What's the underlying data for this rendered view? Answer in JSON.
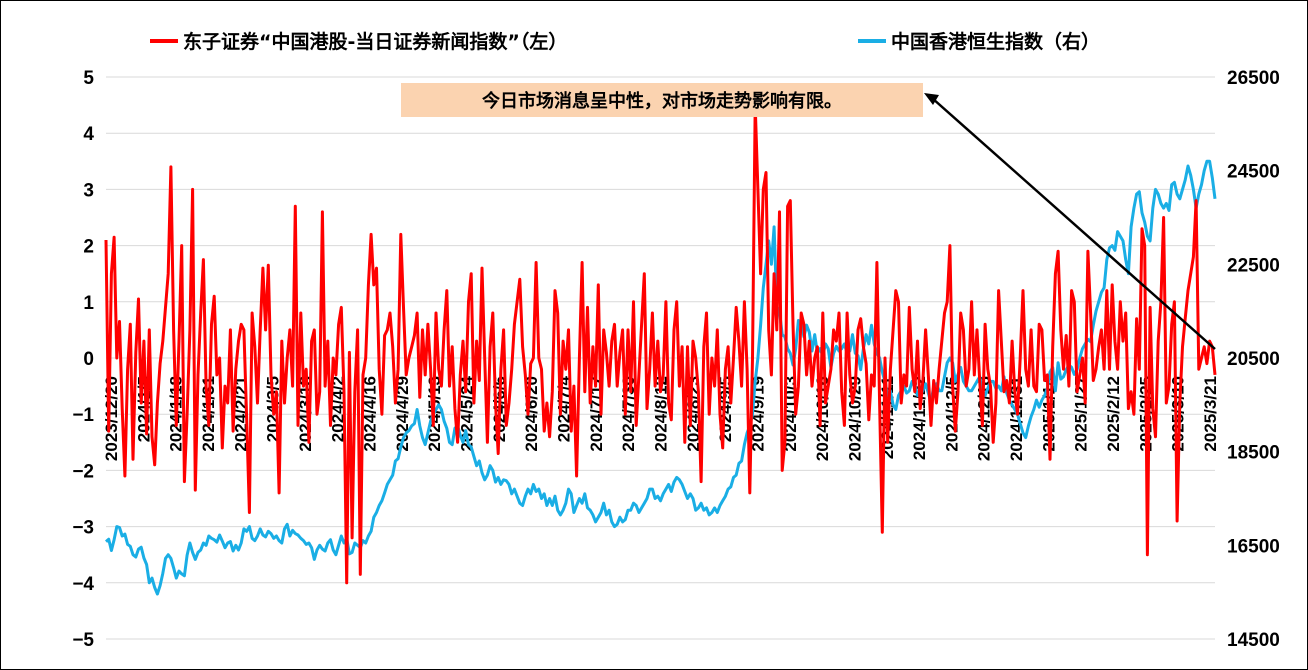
{
  "chart_data": {
    "type": "line",
    "title": "",
    "legend_position": "top",
    "grid": true,
    "y_left": {
      "min": -5,
      "max": 5,
      "ticks": [
        "5",
        "4",
        "3",
        "2",
        "1",
        "0",
        "−1",
        "−2",
        "−3",
        "−4",
        "−5"
      ]
    },
    "y_right": {
      "min": 14500,
      "max": 26500,
      "ticks": [
        "26500",
        "24500",
        "22500",
        "20500",
        "18500",
        "16500",
        "14500"
      ]
    },
    "x_tick_labels": [
      "2023/12/20",
      "2024/1/5",
      "2024/1/18",
      "2024/1/31",
      "2024/2/21",
      "2024/3/5",
      "2024/3/18",
      "2024/4/2",
      "2024/4/16",
      "2024/4/29",
      "2024/5/13",
      "2024/5/24",
      "2024/6/6",
      "2024/6/20",
      "2024/7/4",
      "2024/7/17",
      "2024/7/30",
      "2024/8/12",
      "2024/8/23",
      "2024/9/5",
      "2024/9/19",
      "2024/10/3",
      "2024/10/16",
      "2024/10/29",
      "2024/11/11",
      "2024/11/22",
      "2024/12/5",
      "2024/12/18",
      "2024/12/31",
      "2025/1/14",
      "2025/1/27",
      "2025/2/12",
      "2025/2/25",
      "2025/3/10",
      "2025/3/21"
    ],
    "series": [
      {
        "name": "东子证券“中国港股-当日证券新闻指数”（左）",
        "axis": "left",
        "color": "#ff0000",
        "values": [
          2.1,
          -1.3,
          1.5,
          2.15,
          0.0,
          0.65,
          -0.9,
          -2.1,
          -0.2,
          0.6,
          -1.8,
          0.1,
          1.05,
          -0.8,
          0.3,
          -1.35,
          0.5,
          -1.4,
          -1.9,
          -0.8,
          -0.1,
          0.3,
          0.9,
          1.5,
          3.4,
          0.5,
          -1.2,
          0.3,
          2.0,
          -2.2,
          -1.0,
          0.5,
          3.0,
          -2.35,
          -0.3,
          0.8,
          1.75,
          -0.5,
          -1.2,
          0.6,
          1.1,
          -0.3,
          0.0,
          -1.6,
          -0.5,
          -0.8,
          0.5,
          -1.3,
          -0.2,
          0.3,
          0.6,
          0.5,
          -1.1,
          -2.75,
          0.8,
          0.2,
          -0.8,
          0.5,
          1.6,
          0.5,
          1.65,
          -0.3,
          -1.0,
          -0.6,
          -2.4,
          0.3,
          -0.8,
          0.0,
          0.5,
          -0.5,
          2.7,
          -1.2,
          0.8,
          -0.5,
          -0.2,
          -1.5,
          0.3,
          0.5,
          -1.0,
          -0.6,
          2.6,
          -0.5,
          0.3,
          -1.2,
          0.0,
          -0.3,
          0.6,
          0.9,
          -0.6,
          -4.0,
          0.1,
          -3.2,
          -0.6,
          0.5,
          -3.85,
          -0.3,
          0.0,
          1.3,
          2.2,
          1.3,
          1.6,
          -0.2,
          -1.0,
          0.4,
          0.5,
          0.8,
          0.2,
          -0.8,
          -0.2,
          2.2,
          0.9,
          -0.3,
          0.0,
          0.2,
          0.4,
          0.8,
          -0.7,
          0.5,
          -0.3,
          0.6,
          -0.2,
          -1.2,
          0.8,
          -0.2,
          -0.5,
          0.5,
          1.2,
          -0.5,
          0.2,
          -0.9,
          -1.5,
          -0.3,
          0.3,
          -0.6,
          1.0,
          1.5,
          -0.8,
          0.3,
          -0.4,
          1.6,
          0.0,
          -1.5,
          0.2,
          0.8,
          -0.8,
          -1.7,
          -0.2,
          0.5,
          -1.2,
          -0.8,
          -0.2,
          0.6,
          1.0,
          1.4,
          0.2,
          -0.3,
          -1.0,
          -0.1,
          0.0,
          1.7,
          0.0,
          -0.2,
          -1.3,
          -0.8,
          -1.4,
          -0.6,
          1.2,
          0.8,
          -1.0,
          0.3,
          -0.2,
          0.5,
          -1.3,
          -0.5,
          -2.1,
          0.0,
          1.7,
          -0.6,
          0.9,
          -0.8,
          0.2,
          -0.5,
          1.3,
          -1.0,
          0.5,
          0.1,
          -0.5,
          0.3,
          0.6,
          -0.5,
          0.1,
          0.5,
          -1.0,
          0.5,
          -0.6,
          1.0,
          -1.2,
          -0.3,
          0.6,
          1.5,
          -0.9,
          -0.2,
          0.8,
          -0.5,
          0.3,
          -0.6,
          -0.3,
          1.0,
          -0.8,
          -1.1,
          0.5,
          1.0,
          -0.5,
          0.2,
          -1.5,
          0.2,
          -1.2,
          0.3,
          0.0,
          -0.6,
          -2.2,
          0.2,
          0.8,
          -1.0,
          0.0,
          -0.5,
          0.5,
          -1.0,
          -1.6,
          -0.2,
          0.2,
          -0.8,
          0.0,
          0.9,
          0.3,
          -0.5,
          1.0,
          -0.2,
          -2.4,
          0.0,
          4.5,
          3.0,
          1.5,
          3.0,
          3.3,
          0.5,
          -0.3,
          1.5,
          0.5,
          2.6,
          -2.0,
          -1.5,
          2.7,
          2.8,
          0.6,
          -1.0,
          -0.5,
          0.8,
          0.6,
          -0.3,
          0.3,
          -0.5,
          0.0,
          0.2,
          -1.2,
          0.8,
          -0.8,
          -0.5,
          -0.2,
          0.5,
          0.3,
          0.8,
          -0.6,
          -1.2,
          0.8,
          -0.3,
          -0.8,
          -0.5,
          0.5,
          0.7,
          0.2,
          -0.1,
          -1.1,
          -0.3,
          -0.5,
          1.7,
          -0.8,
          -3.1,
          0.0,
          -1.5,
          -0.2,
          0.5,
          1.2,
          1.0,
          -0.8,
          -0.3,
          -0.5,
          0.9,
          -0.2,
          -0.6,
          0.3,
          -0.9,
          -0.4,
          0.5,
          -0.3,
          -1.2,
          -0.4,
          -0.8,
          -0.2,
          0.3,
          0.8,
          1.0,
          2.0,
          -0.5,
          -1.3,
          -0.6,
          0.8,
          0.5,
          -0.5,
          -0.2,
          1.0,
          -0.3,
          0.5,
          -0.4,
          -1.2,
          0.6,
          -0.2,
          -0.5,
          -1.5,
          -0.8,
          1.2,
          0.3,
          -0.6,
          -0.4,
          -0.8,
          0.3,
          -0.6,
          -1.0,
          0.0,
          1.2,
          -0.2,
          -0.5,
          0.5,
          -0.5,
          -0.6,
          0.6,
          0.5,
          -0.4,
          -0.3,
          -1.8,
          0.2,
          1.5,
          1.9,
          0.5,
          -0.2,
          0.4,
          -0.5,
          1.2,
          1.0,
          -0.6,
          -0.3,
          0.0,
          -0.8,
          1.9,
          0.8,
          -0.4,
          -0.2,
          0.2,
          0.5,
          -0.2,
          1.2,
          -0.2,
          1.3,
          0.3,
          -0.2,
          1.0,
          0.3,
          0.8,
          -0.9,
          -0.6,
          -1.0,
          0.7,
          -0.2,
          2.3,
          2.0,
          -3.5,
          0.9,
          -0.9,
          -1.4,
          0.3,
          1.0,
          2.5,
          -0.8,
          -0.5,
          0.6,
          1.0,
          -2.9,
          -0.8,
          0.2,
          0.7,
          1.2,
          1.5,
          1.8,
          2.8,
          -0.2,
          0.0,
          0.2,
          -0.1,
          0.3,
          0.2,
          -0.3
        ]
      },
      {
        "name": "中国香港恒生指数（右）",
        "axis": "right",
        "color": "#1aaee5",
        "values": [
          16580,
          16630,
          16390,
          16620,
          16900,
          16880,
          16700,
          16740,
          16520,
          16480,
          16300,
          16250,
          16420,
          16460,
          16230,
          16090,
          15700,
          15800,
          15600,
          15460,
          15640,
          15900,
          16220,
          16300,
          16220,
          16020,
          15800,
          15950,
          15890,
          15850,
          16290,
          16550,
          16350,
          16200,
          16350,
          16400,
          16550,
          16500,
          16700,
          16650,
          16620,
          16570,
          16720,
          16590,
          16450,
          16550,
          16580,
          16380,
          16500,
          16400,
          16550,
          16850,
          16800,
          16900,
          16650,
          16600,
          16700,
          16850,
          16720,
          16680,
          16800,
          16750,
          16650,
          16700,
          16600,
          16550,
          16850,
          16950,
          16700,
          16820,
          16750,
          16720,
          16650,
          16600,
          16520,
          16550,
          16450,
          16200,
          16400,
          16500,
          16420,
          16380,
          16550,
          16620,
          16400,
          16300,
          16500,
          16700,
          16550,
          16650,
          16320,
          16350,
          16550,
          16500,
          16450,
          16600,
          16550,
          16700,
          16800,
          17100,
          17200,
          17350,
          17450,
          17620,
          17800,
          17900,
          18000,
          18300,
          18350,
          18600,
          18800,
          18900,
          18950,
          19050,
          19100,
          19400,
          19050,
          18800,
          18650,
          18900,
          19150,
          19300,
          19400,
          19500,
          19400,
          19150,
          19000,
          18700,
          18650,
          19000,
          19050,
          18850,
          18700,
          18950,
          18650,
          18600,
          18400,
          18200,
          18300,
          18050,
          17900,
          18000,
          18200,
          18100,
          17850,
          17950,
          17800,
          17900,
          17880,
          17800,
          17600,
          17700,
          17550,
          17400,
          17350,
          17550,
          17700,
          17600,
          17800,
          17650,
          17700,
          17500,
          17600,
          17350,
          17500,
          17350,
          17550,
          17250,
          17150,
          17250,
          17400,
          17700,
          17600,
          17200,
          17350,
          17500,
          17400,
          17600,
          17300,
          17250,
          17150,
          17000,
          17100,
          17200,
          17400,
          17150,
          17250,
          17000,
          16900,
          16950,
          17100,
          17000,
          17050,
          17250,
          17250,
          17400,
          17350,
          17200,
          17300,
          17400,
          17500,
          17700,
          17700,
          17500,
          17550,
          17450,
          17600,
          17700,
          17800,
          17650,
          17850,
          17950,
          17900,
          17800,
          17650,
          17500,
          17600,
          17500,
          17250,
          17300,
          17400,
          17250,
          17300,
          17150,
          17200,
          17300,
          17200,
          17350,
          17450,
          17550,
          17700,
          17750,
          17950,
          18000,
          18250,
          18300,
          18650,
          18900,
          19050,
          19300,
          20000,
          20500,
          21200,
          22000,
          22500,
          23000,
          22500,
          23300,
          21600,
          21500,
          21000,
          20950,
          20700,
          20600,
          20350,
          20700,
          21300,
          21250,
          20950,
          21200,
          21050,
          20650,
          21000,
          20600,
          20700,
          20550,
          20800,
          20700,
          20300,
          20600,
          20750,
          20650,
          20700,
          20800,
          20600,
          20650,
          21000,
          20600,
          20550,
          20250,
          20700,
          21000,
          20800,
          21200,
          20800,
          20600,
          20500,
          20200,
          20000,
          19700,
          19800,
          19500,
          19400,
          19700,
          19800,
          19900,
          19750,
          19800,
          20000,
          19950,
          19700,
          19700,
          19800,
          19950,
          19750,
          19550,
          19900,
          19950,
          19800,
          19800,
          20100,
          20400,
          20500,
          20400,
          20000,
          20150,
          20300,
          20000,
          19900,
          19800,
          19800,
          19900,
          20000,
          20100,
          19800,
          19700,
          19850,
          20000,
          20000,
          19850,
          19900,
          19800,
          20100,
          19750,
          19600,
          19500,
          19400,
          19300,
          19100,
          18900,
          18800,
          19050,
          19250,
          19400,
          19600,
          19450,
          19600,
          19700,
          19850,
          20200,
          20300,
          19800,
          20400,
          20050,
          20100,
          20250,
          20350,
          20300,
          20150,
          20250,
          20500,
          20700,
          20800,
          20900,
          20850,
          21200,
          21500,
          21700,
          21900,
          22000,
          22600,
          22850,
          22900,
          22800,
          23200,
          23100,
          23000,
          22600,
          22300,
          23300,
          23700,
          24000,
          24050,
          23600,
          23400,
          23100,
          23000,
          23700,
          24100,
          24000,
          23800,
          23700,
          23800,
          23650,
          24200,
          24250,
          24000,
          23900,
          24100,
          24300,
          24600,
          24400,
          24100,
          23700,
          24000,
          24200,
          24500,
          24700,
          24700,
          24350,
          23900
        ]
      }
    ]
  },
  "annotation": {
    "text": "今日市场消息呈中性，对市场走势影响有限。"
  }
}
